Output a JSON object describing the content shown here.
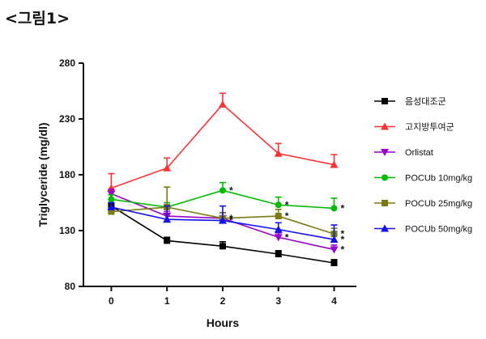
{
  "page": {
    "title": "<그림1>"
  },
  "chart_data": {
    "type": "line",
    "title": "",
    "xlabel": "Hours",
    "ylabel": "Triglyceride (mg/dl)",
    "x": [
      0,
      1,
      2,
      3,
      4
    ],
    "xlim": [
      -0.5,
      4.4
    ],
    "ylim": [
      80,
      280
    ],
    "yticks": [
      80,
      130,
      180,
      230,
      280
    ],
    "xticks": [
      0,
      1,
      2,
      3,
      4
    ],
    "grid": false,
    "legend_position": "right",
    "series": [
      {
        "name": "음성대조군",
        "color": "#000000",
        "marker": "square",
        "values": [
          152,
          121,
          116,
          109,
          101
        ],
        "errors": [
          3,
          3,
          4,
          3,
          3
        ],
        "significance": [
          "",
          "",
          "",
          "",
          ""
        ]
      },
      {
        "name": "고지방투여군",
        "color": "#ff3333",
        "marker": "triangle-up",
        "values": [
          168,
          186,
          243,
          199,
          189
        ],
        "errors": [
          13,
          9,
          10,
          9,
          9
        ],
        "significance": [
          "",
          "",
          "",
          "",
          ""
        ]
      },
      {
        "name": "Orlistat",
        "color": "#9900cc",
        "marker": "triangle-down",
        "values": [
          163,
          143,
          141,
          124,
          113
        ],
        "errors": [
          4,
          4,
          5,
          4,
          4
        ],
        "significance": [
          "",
          "",
          "",
          "*",
          "*"
        ]
      },
      {
        "name": "POCUb 10mg/kg",
        "color": "#00bb00",
        "marker": "circle",
        "values": [
          158,
          151,
          166,
          153,
          150
        ],
        "errors": [
          4,
          4,
          7,
          7,
          9
        ],
        "significance": [
          "",
          "",
          "*",
          "*",
          "*"
        ]
      },
      {
        "name": "POCUb 25mg/kg",
        "color": "#7a7a10",
        "marker": "square",
        "values": [
          147,
          151,
          141,
          143,
          127
        ],
        "errors": [
          3,
          18,
          5,
          6,
          5
        ],
        "significance": [
          "",
          "",
          "*",
          "*",
          "*"
        ]
      },
      {
        "name": "POCUb 50mg/kg",
        "color": "#1111ee",
        "marker": "triangle-up",
        "values": [
          151,
          140,
          139,
          131,
          122
        ],
        "errors": [
          4,
          12,
          13,
          6,
          13
        ],
        "significance": [
          "",
          "",
          "*",
          "",
          "*"
        ]
      }
    ]
  }
}
